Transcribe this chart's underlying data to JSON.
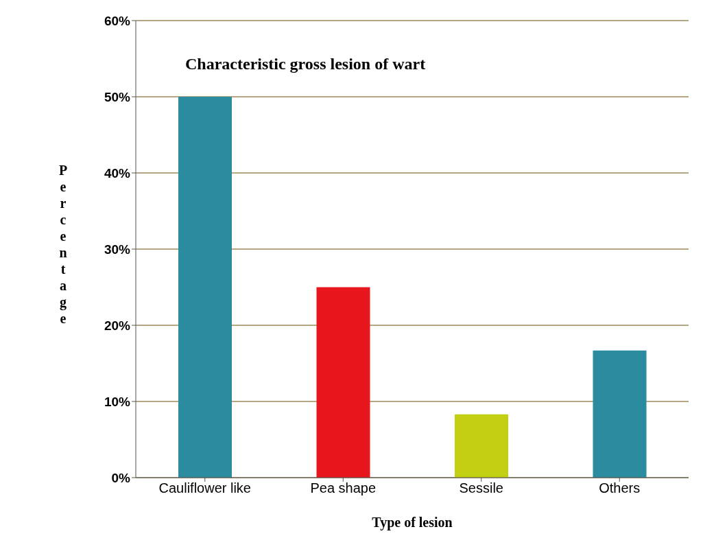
{
  "chart_data": {
    "type": "bar",
    "title": "Characteristic gross lesion of wart",
    "xlabel": "Type of lesion",
    "ylabel": "Percentage",
    "categories": [
      "Cauliflower like",
      "Pea shape",
      "Sessile",
      "Others"
    ],
    "values": [
      50,
      25,
      8.3,
      16.7
    ],
    "colors": [
      "#2a8c9e",
      "#e8161d",
      "#c3cf12",
      "#2a8c9e"
    ],
    "ylim": [
      0,
      60
    ],
    "yticks": [
      {
        "value": 0,
        "label": "0%"
      },
      {
        "value": 10,
        "label": "10%"
      },
      {
        "value": 20,
        "label": "20%"
      },
      {
        "value": 30,
        "label": "30%"
      },
      {
        "value": 40,
        "label": "40%"
      },
      {
        "value": 50,
        "label": "50%"
      },
      {
        "value": 60,
        "label": "60%"
      }
    ],
    "grid": "y",
    "legend": false
  }
}
